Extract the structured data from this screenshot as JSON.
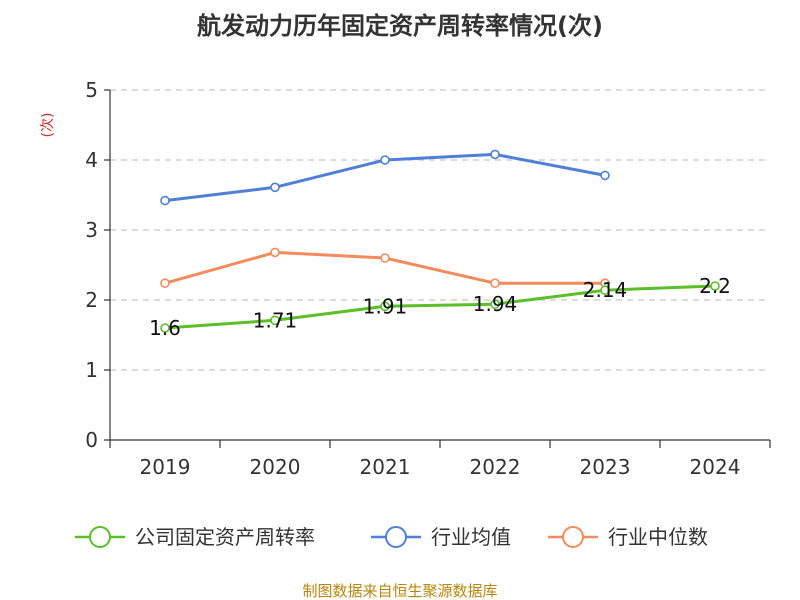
{
  "chart_data": {
    "type": "line",
    "title": "航发动力历年固定资产周转率情况(次)",
    "ylabel": "(次)",
    "xlabel": "",
    "categories": [
      "2019",
      "2020",
      "2021",
      "2022",
      "2023",
      "2024"
    ],
    "ylim": [
      0,
      5
    ],
    "yticks": [
      0,
      1,
      2,
      3,
      4,
      5
    ],
    "grid": true,
    "legend_position": "bottom",
    "series": [
      {
        "key": "company",
        "name": "公司固定资产周转率",
        "color": "#5cbf28",
        "values": [
          1.6,
          1.71,
          1.91,
          1.94,
          2.14,
          2.2
        ],
        "labels": [
          "1.6",
          "1.71",
          "1.91",
          "1.94",
          "2.14",
          "2.2"
        ]
      },
      {
        "key": "industry-avg",
        "name": "行业均值",
        "color": "#4f7fd8",
        "values": [
          3.42,
          3.61,
          4.0,
          4.08,
          3.78,
          null
        ]
      },
      {
        "key": "industry-median",
        "name": "行业中位数",
        "color": "#f48b5c",
        "values": [
          2.24,
          2.68,
          2.6,
          2.24,
          2.24,
          null
        ]
      }
    ],
    "source": "制图数据来自恒生聚源数据库"
  }
}
